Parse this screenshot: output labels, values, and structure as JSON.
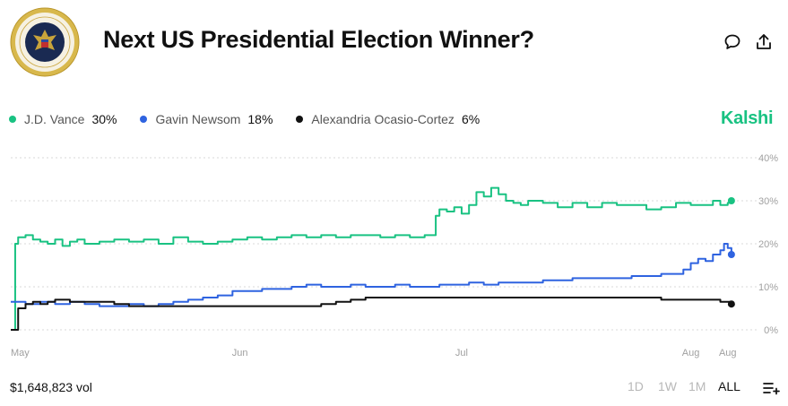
{
  "header": {
    "title": "Next US Presidential Election Winner?",
    "seal_text": "SEAL OF THE PRESIDENT OF THE UNITED STATES",
    "comment_icon": "comment-icon",
    "share_icon": "share-icon"
  },
  "brand": "Kalshi",
  "legend": [
    {
      "name": "J.D. Vance",
      "value": "30%",
      "color": "#19c282"
    },
    {
      "name": "Gavin Newsom",
      "value": "18%",
      "color": "#2f63e0"
    },
    {
      "name": "Alexandria Ocasio-Cortez",
      "value": "6%",
      "color": "#111111"
    }
  ],
  "footer": {
    "volume": "$1,648,823 vol",
    "ranges": [
      "1D",
      "1W",
      "1M",
      "ALL"
    ],
    "active_range": "ALL",
    "menu_icon": "list-add-icon"
  },
  "chart_data": {
    "type": "line",
    "title": "Next US Presidential Election Winner?",
    "xlabel": "",
    "ylabel": "",
    "ylim": [
      0,
      40
    ],
    "yticks": [
      0,
      10,
      20,
      30,
      40
    ],
    "ytick_labels": [
      "0%",
      "10%",
      "20%",
      "30%",
      "40%"
    ],
    "xlim": [
      0,
      98
    ],
    "xticks": [
      0,
      31,
      61,
      92,
      97
    ],
    "xtick_labels": [
      "May",
      "Jun",
      "Jul",
      "Aug",
      "Aug"
    ],
    "grid": true,
    "series": [
      {
        "name": "J.D. Vance",
        "color": "#19c282",
        "x": [
          0,
          0.4,
          0.6,
          1,
          2,
          3,
          4,
          5,
          6,
          7,
          8,
          9,
          10,
          12,
          14,
          16,
          18,
          20,
          22,
          24,
          26,
          28,
          30,
          32,
          34,
          36,
          38,
          40,
          42,
          44,
          46,
          48,
          50,
          52,
          54,
          56,
          57,
          57.5,
          58,
          59,
          60,
          61,
          62,
          63,
          64,
          65,
          66,
          67,
          68,
          69,
          70,
          72,
          74,
          76,
          78,
          80,
          82,
          84,
          86,
          88,
          90,
          92,
          94,
          95,
          96,
          97,
          97.5
        ],
        "values": [
          0,
          0,
          20,
          21.5,
          22,
          21,
          20.5,
          20,
          21,
          19.5,
          20.5,
          21,
          20,
          20.5,
          21,
          20.5,
          21,
          20,
          21.5,
          20.5,
          20,
          20.5,
          21,
          21.5,
          21,
          21.5,
          22,
          21.5,
          22,
          21.5,
          22,
          22,
          21.5,
          22,
          21.5,
          22,
          22,
          26.5,
          28,
          27.5,
          28.5,
          27,
          29,
          32,
          31,
          33,
          31.5,
          30,
          29.5,
          29,
          30,
          29.5,
          28.5,
          29.5,
          28.5,
          29.5,
          29,
          29,
          28,
          28.5,
          29.5,
          29,
          29,
          30,
          29,
          29.5,
          30
        ]
      },
      {
        "name": "Gavin Newsom",
        "color": "#2f63e0",
        "x": [
          0,
          2,
          4,
          6,
          8,
          10,
          12,
          14,
          16,
          18,
          20,
          22,
          24,
          26,
          28,
          30,
          32,
          34,
          36,
          38,
          40,
          42,
          44,
          46,
          48,
          50,
          52,
          54,
          56,
          58,
          60,
          62,
          64,
          66,
          68,
          70,
          72,
          74,
          76,
          78,
          80,
          82,
          84,
          86,
          88,
          90,
          91,
          92,
          93,
          94,
          95,
          96,
          96.5,
          97,
          97.5
        ],
        "values": [
          6.5,
          6,
          6.5,
          6,
          6.5,
          6,
          5.5,
          5.5,
          6,
          5.5,
          6,
          6.5,
          7,
          7.5,
          8,
          9,
          9,
          9.5,
          9.5,
          10,
          10.5,
          10,
          10,
          10.5,
          10,
          10,
          10.5,
          10,
          10,
          10.5,
          10.5,
          11,
          10.5,
          11,
          11,
          11,
          11.5,
          11.5,
          12,
          12,
          12,
          12,
          12.5,
          12.5,
          13,
          13,
          14,
          15.5,
          16.5,
          16,
          17.5,
          18.5,
          20,
          19,
          17.5
        ]
      },
      {
        "name": "Alexandria Ocasio-Cortez",
        "color": "#111111",
        "x": [
          0,
          0.5,
          1,
          2,
          3,
          4,
          5,
          6,
          8,
          10,
          12,
          14,
          16,
          18,
          20,
          22,
          24,
          26,
          28,
          30,
          32,
          34,
          36,
          38,
          40,
          42,
          44,
          46,
          48,
          50,
          52,
          54,
          56,
          58,
          60,
          62,
          64,
          66,
          68,
          70,
          72,
          74,
          76,
          78,
          80,
          82,
          84,
          86,
          88,
          90,
          92,
          94,
          96,
          97,
          97.5
        ],
        "values": [
          0,
          0,
          5,
          6,
          6.5,
          6,
          6.5,
          7,
          6.5,
          6.5,
          6.5,
          6,
          5.5,
          5.5,
          5.5,
          5.5,
          5.5,
          5.5,
          5.5,
          5.5,
          5.5,
          5.5,
          5.5,
          5.5,
          5.5,
          6,
          6.5,
          7,
          7.5,
          7.5,
          7.5,
          7.5,
          7.5,
          7.5,
          7.5,
          7.5,
          7.5,
          7.5,
          7.5,
          7.5,
          7.5,
          7.5,
          7.5,
          7.5,
          7.5,
          7.5,
          7.5,
          7.5,
          7,
          7,
          7,
          7,
          6.5,
          6.5,
          6
        ]
      }
    ]
  }
}
